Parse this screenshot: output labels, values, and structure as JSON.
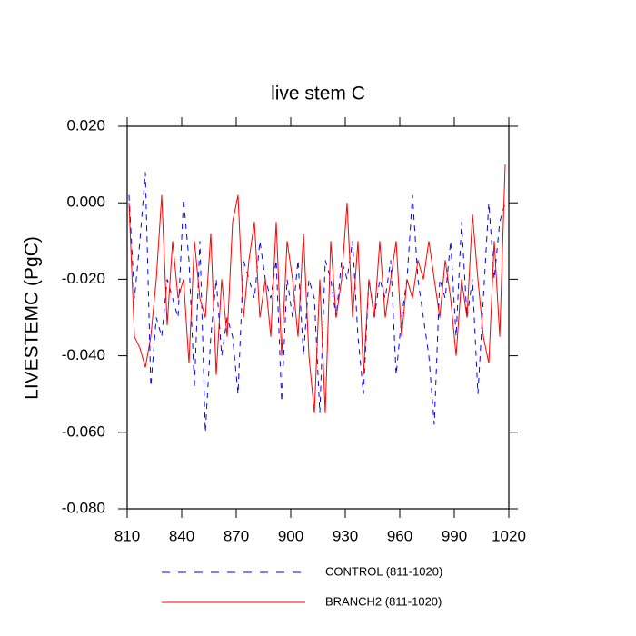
{
  "chart_data": {
    "type": "line",
    "title": "live stem C",
    "ylabel": "LIVESTEMC  (PgC)",
    "x": [
      811,
      814,
      817,
      820,
      823,
      826,
      829,
      832,
      835,
      838,
      841,
      844,
      847,
      850,
      853,
      856,
      859,
      862,
      865,
      868,
      871,
      874,
      877,
      880,
      883,
      886,
      889,
      892,
      895,
      898,
      901,
      904,
      907,
      910,
      913,
      916,
      919,
      922,
      925,
      928,
      931,
      934,
      937,
      940,
      943,
      946,
      949,
      952,
      955,
      958,
      961,
      964,
      967,
      970,
      973,
      976,
      979,
      982,
      985,
      988,
      991,
      994,
      997,
      1000,
      1003,
      1006,
      1009,
      1012,
      1015,
      1018
    ],
    "series": [
      {
        "name": "CONTROL (811-1020)",
        "color": "#0000ff",
        "line_style": "dashed",
        "values": [
          0.002,
          -0.025,
          -0.01,
          0.008,
          -0.048,
          -0.03,
          -0.035,
          -0.02,
          -0.025,
          -0.03,
          0.001,
          -0.015,
          -0.048,
          -0.01,
          -0.06,
          -0.035,
          -0.02,
          -0.04,
          -0.03,
          -0.035,
          -0.05,
          -0.015,
          -0.02,
          -0.025,
          -0.01,
          -0.02,
          -0.025,
          -0.015,
          -0.052,
          -0.02,
          -0.03,
          -0.015,
          -0.04,
          -0.02,
          -0.025,
          -0.055,
          -0.015,
          -0.02,
          -0.03,
          -0.015,
          -0.02,
          -0.01,
          -0.035,
          -0.05,
          -0.02,
          -0.03,
          -0.02,
          -0.025,
          -0.015,
          -0.045,
          -0.03,
          -0.02,
          0.002,
          -0.02,
          -0.03,
          -0.04,
          -0.058,
          -0.02,
          -0.025,
          -0.01,
          -0.035,
          -0.005,
          -0.03,
          -0.02,
          -0.05,
          -0.025,
          0.0,
          -0.02,
          -0.005,
          0.0
        ]
      },
      {
        "name": "BRANCH2 (811-1020)",
        "color": "#ff0000",
        "line_style": "solid",
        "values": [
          0.0,
          -0.035,
          -0.038,
          -0.043,
          -0.035,
          -0.02,
          0.002,
          -0.032,
          -0.01,
          -0.025,
          -0.02,
          -0.042,
          -0.01,
          -0.025,
          -0.03,
          -0.008,
          -0.045,
          -0.02,
          -0.035,
          -0.005,
          0.002,
          -0.03,
          -0.015,
          -0.005,
          -0.03,
          -0.02,
          -0.035,
          -0.005,
          -0.04,
          -0.01,
          -0.02,
          -0.035,
          -0.008,
          -0.04,
          -0.055,
          -0.02,
          -0.055,
          -0.01,
          -0.03,
          -0.02,
          0.0,
          -0.03,
          -0.01,
          -0.045,
          -0.02,
          -0.03,
          -0.01,
          -0.03,
          -0.02,
          -0.01,
          -0.035,
          -0.02,
          -0.025,
          -0.015,
          -0.02,
          -0.01,
          -0.02,
          -0.03,
          -0.015,
          -0.025,
          -0.04,
          -0.02,
          -0.03,
          -0.003,
          -0.02,
          -0.035,
          -0.042,
          -0.01,
          -0.035,
          0.01
        ]
      }
    ],
    "xlim": [
      810,
      1020
    ],
    "xticks": [
      810,
      840,
      870,
      900,
      930,
      960,
      990,
      1020
    ],
    "ylim": [
      -0.08,
      0.02
    ],
    "yticks": [
      {
        "value": 0.02,
        "label": "0.020"
      },
      {
        "value": 0.0,
        "label": "0.000"
      },
      {
        "value": -0.02,
        "label": "-0.020"
      },
      {
        "value": -0.04,
        "label": "-0.040"
      },
      {
        "value": -0.06,
        "label": "-0.060"
      },
      {
        "value": -0.08,
        "label": "-0.080"
      }
    ]
  }
}
